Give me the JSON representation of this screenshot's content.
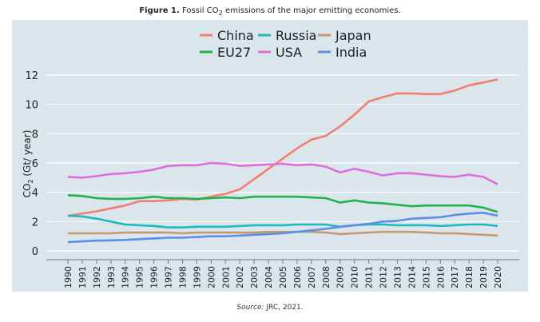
{
  "title": {
    "label": "Figure 1.",
    "text_pre": "Fossil CO",
    "sub": "2",
    "text_post": " emissions of the major emitting economies."
  },
  "source": {
    "label": "Source:",
    "text": "JRC, 2021."
  },
  "chart_data": {
    "type": "line",
    "ylabel": "CO2 (Gt/ year)",
    "ylabel_main": "CO",
    "ylabel_sub": "2",
    "ylabel_rest": " (Gt/ year)",
    "ylim": [
      0,
      12
    ],
    "yticks": [
      0,
      2,
      4,
      6,
      8,
      10,
      12
    ],
    "grid": true,
    "legend": "top-center",
    "x": [
      1990,
      1991,
      1992,
      1993,
      1994,
      1995,
      1996,
      1997,
      1998,
      1999,
      2000,
      2001,
      2002,
      2003,
      2004,
      2005,
      2006,
      2007,
      2008,
      2009,
      2010,
      2011,
      2012,
      2013,
      2014,
      2015,
      2016,
      2017,
      2018,
      2019,
      2020
    ],
    "series": [
      {
        "name": "China",
        "color": "#f0806e",
        "values": [
          2.4,
          2.55,
          2.7,
          2.9,
          3.1,
          3.4,
          3.4,
          3.45,
          3.55,
          3.5,
          3.7,
          3.9,
          4.2,
          4.9,
          5.6,
          6.3,
          7.0,
          7.6,
          7.85,
          8.5,
          9.3,
          10.2,
          10.5,
          10.75,
          10.75,
          10.7,
          10.7,
          10.95,
          11.3,
          11.5,
          11.7
        ]
      },
      {
        "name": "Russia",
        "color": "#1fb8c0",
        "values": [
          2.4,
          2.35,
          2.2,
          2.0,
          1.8,
          1.75,
          1.7,
          1.6,
          1.6,
          1.65,
          1.65,
          1.65,
          1.7,
          1.75,
          1.75,
          1.75,
          1.8,
          1.8,
          1.8,
          1.65,
          1.75,
          1.8,
          1.8,
          1.75,
          1.75,
          1.75,
          1.7,
          1.75,
          1.8,
          1.8,
          1.7
        ]
      },
      {
        "name": "Japan",
        "color": "#c49a6c",
        "values": [
          1.2,
          1.2,
          1.2,
          1.2,
          1.25,
          1.25,
          1.25,
          1.25,
          1.2,
          1.25,
          1.25,
          1.25,
          1.25,
          1.25,
          1.3,
          1.3,
          1.3,
          1.3,
          1.25,
          1.15,
          1.2,
          1.25,
          1.3,
          1.3,
          1.3,
          1.25,
          1.2,
          1.2,
          1.15,
          1.1,
          1.05
        ]
      },
      {
        "name": "EU27",
        "color": "#22b24c",
        "values": [
          3.8,
          3.75,
          3.6,
          3.55,
          3.55,
          3.6,
          3.7,
          3.6,
          3.6,
          3.55,
          3.6,
          3.65,
          3.6,
          3.7,
          3.7,
          3.7,
          3.7,
          3.65,
          3.6,
          3.3,
          3.45,
          3.3,
          3.25,
          3.15,
          3.05,
          3.1,
          3.1,
          3.1,
          3.1,
          2.95,
          2.65
        ]
      },
      {
        "name": "USA",
        "color": "#e06cd8",
        "values": [
          5.05,
          5.0,
          5.1,
          5.25,
          5.3,
          5.4,
          5.55,
          5.8,
          5.85,
          5.85,
          6.0,
          5.95,
          5.8,
          5.85,
          5.9,
          5.95,
          5.85,
          5.9,
          5.75,
          5.35,
          5.6,
          5.4,
          5.15,
          5.3,
          5.3,
          5.2,
          5.1,
          5.05,
          5.2,
          5.05,
          4.55
        ]
      },
      {
        "name": "India",
        "color": "#5b8fe8",
        "values": [
          0.6,
          0.65,
          0.7,
          0.72,
          0.75,
          0.8,
          0.85,
          0.9,
          0.9,
          0.95,
          1.0,
          1.0,
          1.05,
          1.1,
          1.15,
          1.2,
          1.3,
          1.4,
          1.5,
          1.65,
          1.75,
          1.85,
          2.0,
          2.05,
          2.2,
          2.25,
          2.3,
          2.45,
          2.55,
          2.6,
          2.4
        ]
      }
    ]
  }
}
